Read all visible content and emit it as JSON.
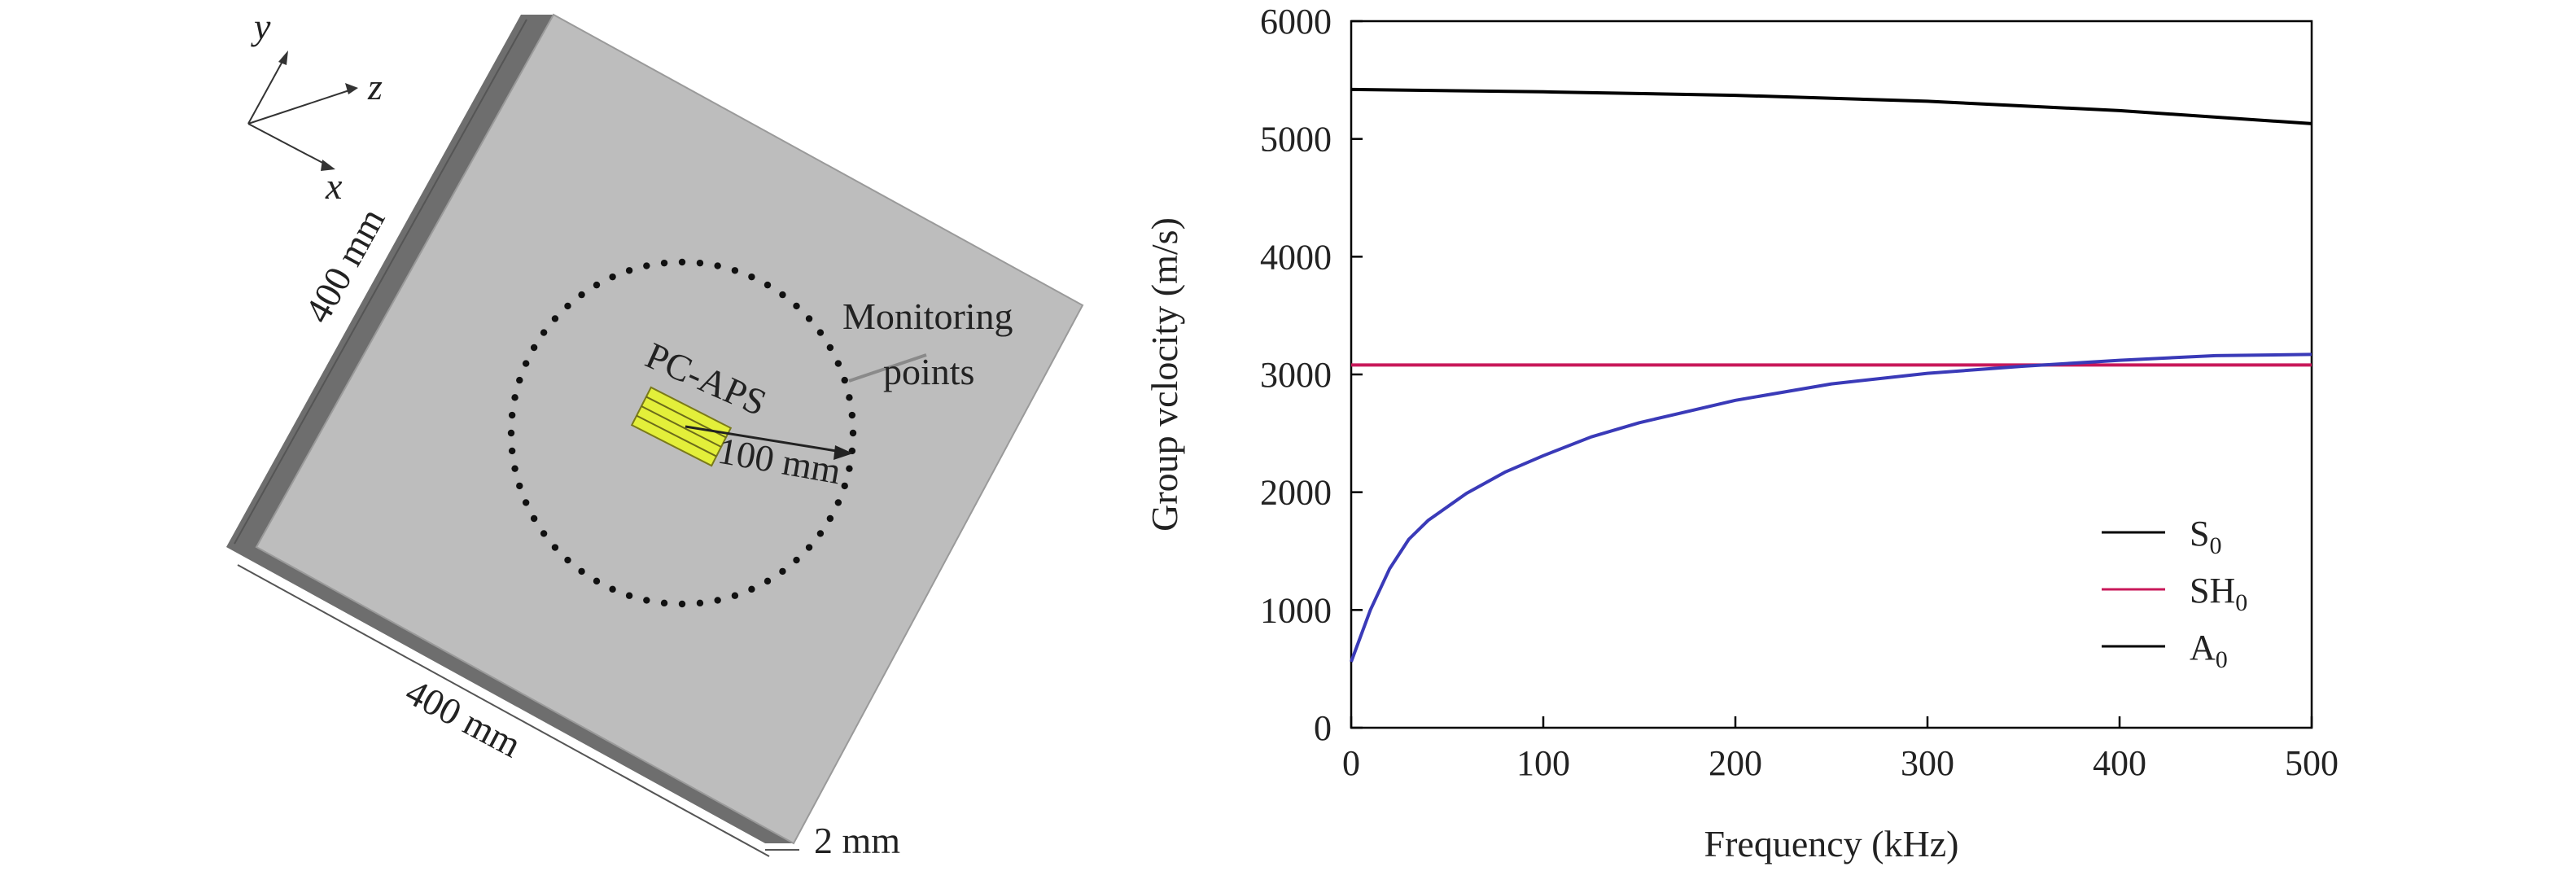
{
  "left_panel": {
    "axis_y": "y",
    "axis_z": "z",
    "axis_x": "x",
    "dim_top": "400 mm",
    "dim_bottom": "400 mm",
    "dim_thickness": "2 mm",
    "monitoring_line1": "Monitoring",
    "monitoring_line2": "points",
    "sensor_label": "PC-APS",
    "radius_label": "100 mm",
    "colors": {
      "plate_top": "#bdbdbd",
      "plate_side": "#6e6e6e",
      "sensor": "#e3ef3a",
      "dots": "#111111"
    }
  },
  "chart_data": {
    "type": "line",
    "xlabel": "Frequency (kHz)",
    "ylabel": "Group vclocity (m/s)",
    "xlim": [
      0,
      500
    ],
    "ylim": [
      0,
      6000
    ],
    "xticks": [
      0,
      100,
      200,
      300,
      400,
      500
    ],
    "yticks": [
      0,
      1000,
      2000,
      3000,
      4000,
      5000,
      6000
    ],
    "grid": false,
    "legend_position": "bottom-right",
    "series": [
      {
        "name": "S",
        "subscript": "0",
        "color": "#000000",
        "x": [
          0,
          100,
          200,
          300,
          400,
          500
        ],
        "y": [
          5420,
          5400,
          5370,
          5320,
          5240,
          5130
        ]
      },
      {
        "name": "SH",
        "subscript": "0",
        "color": "#c8185a",
        "x": [
          0,
          100,
          200,
          300,
          400,
          500
        ],
        "y": [
          3080,
          3080,
          3080,
          3080,
          3080,
          3080
        ]
      },
      {
        "name": "A",
        "subscript": "0",
        "color": "#3a3ab8",
        "x": [
          0,
          10,
          20,
          30,
          40,
          60,
          80,
          100,
          125,
          150,
          200,
          250,
          300,
          350,
          400,
          450,
          500
        ],
        "y": [
          560,
          1000,
          1350,
          1600,
          1760,
          1990,
          2170,
          2310,
          2470,
          2590,
          2780,
          2920,
          3010,
          3070,
          3120,
          3160,
          3170
        ]
      }
    ]
  }
}
